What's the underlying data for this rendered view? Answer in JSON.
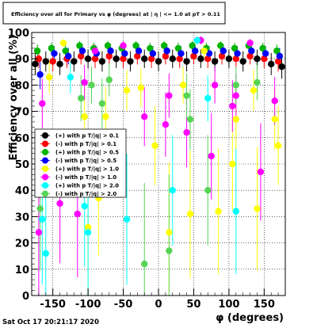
{
  "chart_data": {
    "type": "scatter",
    "title": "Efficiency over all for Primary vs φ (degrees) at | η | <= 1.0 at pT > 0.11",
    "xlabel": "φ (degrees)",
    "ylabel": "Efficiency over all (%)",
    "xlim": [
      -180,
      180
    ],
    "ylim": [
      0,
      100
    ],
    "x_ticks": [
      -150,
      -100,
      -50,
      0,
      50,
      100,
      150
    ],
    "y_ticks": [
      0,
      10,
      20,
      30,
      40,
      50,
      60,
      70,
      80,
      90,
      100
    ],
    "grid": true,
    "legend_position": "middle-left",
    "timestamp": "Sat Oct 17 20:21:17 2020",
    "series": [
      {
        "name": "(+) with p T/|q| > 0.1",
        "color": "#000000",
        "values": [
          {
            "x": -175,
            "y": 88
          },
          {
            "x": -160,
            "y": 89
          },
          {
            "x": -140,
            "y": 88
          },
          {
            "x": -120,
            "y": 89
          },
          {
            "x": -100,
            "y": 90
          },
          {
            "x": -80,
            "y": 89
          },
          {
            "x": -60,
            "y": 90
          },
          {
            "x": -40,
            "y": 89
          },
          {
            "x": -20,
            "y": 90
          },
          {
            "x": 0,
            "y": 89
          },
          {
            "x": 20,
            "y": 90
          },
          {
            "x": 40,
            "y": 89
          },
          {
            "x": 60,
            "y": 90
          },
          {
            "x": 80,
            "y": 89
          },
          {
            "x": 100,
            "y": 90
          },
          {
            "x": 120,
            "y": 89
          },
          {
            "x": 140,
            "y": 90
          },
          {
            "x": 160,
            "y": 88
          },
          {
            "x": 175,
            "y": 87
          }
        ]
      },
      {
        "name": "(-) with p T/|q| > 0.1",
        "color": "#ff0000",
        "values": [
          {
            "x": -170,
            "y": 90
          },
          {
            "x": -150,
            "y": 89
          },
          {
            "x": -130,
            "y": 90
          },
          {
            "x": -110,
            "y": 91
          },
          {
            "x": -90,
            "y": 90
          },
          {
            "x": -70,
            "y": 91
          },
          {
            "x": -50,
            "y": 90
          },
          {
            "x": -30,
            "y": 91
          },
          {
            "x": -10,
            "y": 90
          },
          {
            "x": 10,
            "y": 91
          },
          {
            "x": 30,
            "y": 90
          },
          {
            "x": 50,
            "y": 91
          },
          {
            "x": 70,
            "y": 90
          },
          {
            "x": 90,
            "y": 91
          },
          {
            "x": 110,
            "y": 90
          },
          {
            "x": 130,
            "y": 91
          },
          {
            "x": 150,
            "y": 90
          },
          {
            "x": 170,
            "y": 89
          }
        ]
      },
      {
        "name": "(+) with p T/|q| > 0.5",
        "color": "#00b400",
        "values": [
          {
            "x": -172,
            "y": 93
          },
          {
            "x": -152,
            "y": 94
          },
          {
            "x": -132,
            "y": 93
          },
          {
            "x": -112,
            "y": 95
          },
          {
            "x": -92,
            "y": 94
          },
          {
            "x": -72,
            "y": 95
          },
          {
            "x": -52,
            "y": 94
          },
          {
            "x": -32,
            "y": 95
          },
          {
            "x": -12,
            "y": 94
          },
          {
            "x": 8,
            "y": 95
          },
          {
            "x": 28,
            "y": 94
          },
          {
            "x": 48,
            "y": 95
          },
          {
            "x": 68,
            "y": 94
          },
          {
            "x": 88,
            "y": 95
          },
          {
            "x": 108,
            "y": 94
          },
          {
            "x": 128,
            "y": 95
          },
          {
            "x": 148,
            "y": 94
          },
          {
            "x": 168,
            "y": 93
          }
        ]
      },
      {
        "name": "(-) with p T/|q| > 0.5",
        "color": "#0000ff",
        "values": [
          {
            "x": -168,
            "y": 84
          },
          {
            "x": -148,
            "y": 92
          },
          {
            "x": -128,
            "y": 91
          },
          {
            "x": -108,
            "y": 93
          },
          {
            "x": -88,
            "y": 92
          },
          {
            "x": -68,
            "y": 93
          },
          {
            "x": -48,
            "y": 92
          },
          {
            "x": -28,
            "y": 93
          },
          {
            "x": -8,
            "y": 92
          },
          {
            "x": 12,
            "y": 93
          },
          {
            "x": 32,
            "y": 92
          },
          {
            "x": 52,
            "y": 93
          },
          {
            "x": 72,
            "y": 92
          },
          {
            "x": 92,
            "y": 93
          },
          {
            "x": 112,
            "y": 92
          },
          {
            "x": 132,
            "y": 93
          },
          {
            "x": 152,
            "y": 92
          },
          {
            "x": 172,
            "y": 91
          }
        ]
      },
      {
        "name": "(+) with p T/|q| > 1.0",
        "color": "#ffff00",
        "values": [
          {
            "x": -155,
            "y": 83
          },
          {
            "x": -135,
            "y": 96
          },
          {
            "x": -105,
            "y": 68
          },
          {
            "x": -100,
            "y": 26
          },
          {
            "x": -85,
            "y": 37
          },
          {
            "x": -75,
            "y": 68
          },
          {
            "x": -45,
            "y": 78
          },
          {
            "x": -25,
            "y": 79
          },
          {
            "x": -5,
            "y": 57
          },
          {
            "x": 15,
            "y": 24
          },
          {
            "x": 35,
            "y": 80
          },
          {
            "x": 45,
            "y": 31
          },
          {
            "x": 65,
            "y": 93
          },
          {
            "x": 85,
            "y": 32
          },
          {
            "x": 105,
            "y": 50
          },
          {
            "x": 110,
            "y": 67
          },
          {
            "x": 135,
            "y": 78
          },
          {
            "x": 140,
            "y": 33
          },
          {
            "x": 165,
            "y": 67
          },
          {
            "x": 170,
            "y": 57
          }
        ]
      },
      {
        "name": "(-) with p T/|q| > 1.0",
        "color": "#ff00ff",
        "values": [
          {
            "x": -170,
            "y": 24
          },
          {
            "x": -165,
            "y": 73
          },
          {
            "x": -140,
            "y": 35
          },
          {
            "x": -115,
            "y": 31
          },
          {
            "x": -105,
            "y": 81
          },
          {
            "x": -90,
            "y": 93
          },
          {
            "x": -50,
            "y": 95
          },
          {
            "x": -20,
            "y": 68
          },
          {
            "x": 10,
            "y": 65
          },
          {
            "x": 15,
            "y": 76
          },
          {
            "x": 40,
            "y": 62
          },
          {
            "x": 60,
            "y": 97
          },
          {
            "x": 75,
            "y": 53
          },
          {
            "x": 80,
            "y": 80
          },
          {
            "x": 105,
            "y": 72
          },
          {
            "x": 110,
            "y": 76
          },
          {
            "x": 130,
            "y": 96
          },
          {
            "x": 145,
            "y": 47
          },
          {
            "x": 165,
            "y": 74
          }
        ]
      },
      {
        "name": "(+) with p T/|q| > 2.0",
        "color": "#00ffff",
        "values": [
          {
            "x": -165,
            "y": 29
          },
          {
            "x": -160,
            "y": 16
          },
          {
            "x": -125,
            "y": 83
          },
          {
            "x": -105,
            "y": 34
          },
          {
            "x": -100,
            "y": 24
          },
          {
            "x": -45,
            "y": 29
          },
          {
            "x": 20,
            "y": 40
          },
          {
            "x": 55,
            "y": 97
          },
          {
            "x": 70,
            "y": 75
          },
          {
            "x": 110,
            "y": 32
          }
        ]
      },
      {
        "name": "(-) with p T/|q| > 2.0",
        "color": "#55d455",
        "values": [
          {
            "x": -168,
            "y": 33
          },
          {
            "x": -110,
            "y": 75
          },
          {
            "x": -95,
            "y": 80
          },
          {
            "x": -80,
            "y": 73
          },
          {
            "x": -70,
            "y": 82
          },
          {
            "x": -20,
            "y": 12
          },
          {
            "x": 15,
            "y": 17
          },
          {
            "x": 40,
            "y": 76
          },
          {
            "x": 45,
            "y": 67
          },
          {
            "x": 70,
            "y": 40
          },
          {
            "x": 110,
            "y": 80
          },
          {
            "x": 140,
            "y": 81
          }
        ]
      }
    ]
  }
}
